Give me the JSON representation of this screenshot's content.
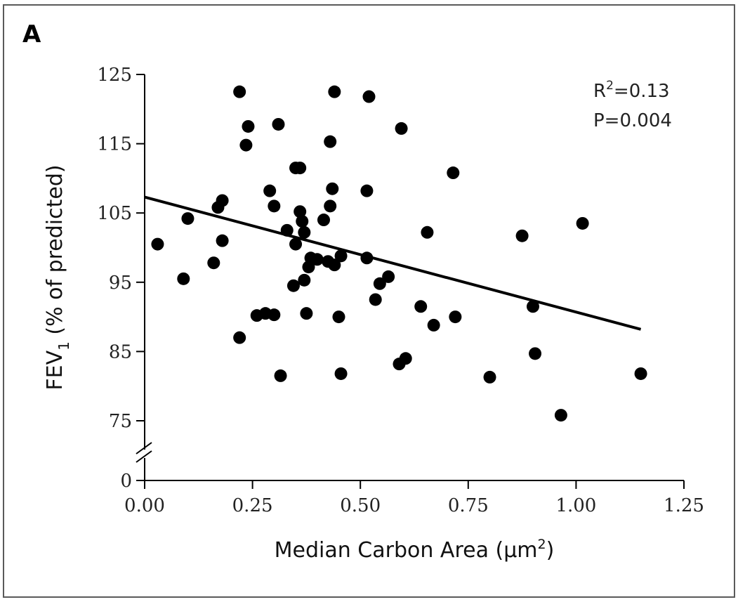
{
  "chart_data": {
    "type": "scatter",
    "panel_label": "A",
    "xlabel": "Median Carbon Area (µm",
    "xlabel_sup": "2",
    "xlabel_end": ")",
    "ylabel": "FEV",
    "ylabel_sub": "1",
    "ylabel_rest": " (% of predicted)",
    "xlim": [
      0.0,
      1.25
    ],
    "ylim_upper": [
      75,
      125
    ],
    "axis_break": true,
    "y_break_value": 0,
    "x_ticks": [
      "0.00",
      "0.25",
      "0.50",
      "0.75",
      "1.00",
      "1.25"
    ],
    "y_ticks": [
      "125",
      "115",
      "105",
      "95",
      "85",
      "75"
    ],
    "y_zero_label": "0",
    "stats": {
      "r2_prefix": "R",
      "r2_sup": "2",
      "r2_value": "=0.13",
      "p_value": "P=0.004"
    },
    "trend_line": {
      "x": [
        0.0,
        1.15
      ],
      "y": [
        107.3,
        88.2
      ]
    },
    "points": [
      {
        "x": 0.03,
        "y": 100.5
      },
      {
        "x": 0.09,
        "y": 95.5
      },
      {
        "x": 0.1,
        "y": 104.2
      },
      {
        "x": 0.16,
        "y": 97.8
      },
      {
        "x": 0.17,
        "y": 105.8
      },
      {
        "x": 0.18,
        "y": 106.8
      },
      {
        "x": 0.18,
        "y": 101.0
      },
      {
        "x": 0.22,
        "y": 122.5
      },
      {
        "x": 0.22,
        "y": 87.0
      },
      {
        "x": 0.24,
        "y": 117.5
      },
      {
        "x": 0.235,
        "y": 114.8
      },
      {
        "x": 0.26,
        "y": 90.2
      },
      {
        "x": 0.28,
        "y": 90.5
      },
      {
        "x": 0.3,
        "y": 90.3
      },
      {
        "x": 0.29,
        "y": 108.2
      },
      {
        "x": 0.3,
        "y": 106.0
      },
      {
        "x": 0.31,
        "y": 117.8
      },
      {
        "x": 0.315,
        "y": 81.5
      },
      {
        "x": 0.33,
        "y": 102.5
      },
      {
        "x": 0.345,
        "y": 94.5
      },
      {
        "x": 0.35,
        "y": 111.5
      },
      {
        "x": 0.36,
        "y": 111.5
      },
      {
        "x": 0.35,
        "y": 100.5
      },
      {
        "x": 0.36,
        "y": 105.2
      },
      {
        "x": 0.365,
        "y": 103.8
      },
      {
        "x": 0.37,
        "y": 102.2
      },
      {
        "x": 0.37,
        "y": 95.3
      },
      {
        "x": 0.375,
        "y": 90.5
      },
      {
        "x": 0.38,
        "y": 97.2
      },
      {
        "x": 0.385,
        "y": 98.5
      },
      {
        "x": 0.4,
        "y": 98.3
      },
      {
        "x": 0.415,
        "y": 104.0
      },
      {
        "x": 0.425,
        "y": 98.0
      },
      {
        "x": 0.43,
        "y": 106.0
      },
      {
        "x": 0.43,
        "y": 115.3
      },
      {
        "x": 0.44,
        "y": 122.5
      },
      {
        "x": 0.435,
        "y": 108.5
      },
      {
        "x": 0.44,
        "y": 97.5
      },
      {
        "x": 0.45,
        "y": 90.0
      },
      {
        "x": 0.455,
        "y": 98.8
      },
      {
        "x": 0.455,
        "y": 81.8
      },
      {
        "x": 0.515,
        "y": 108.2
      },
      {
        "x": 0.515,
        "y": 98.5
      },
      {
        "x": 0.52,
        "y": 121.8
      },
      {
        "x": 0.535,
        "y": 92.5
      },
      {
        "x": 0.545,
        "y": 94.8
      },
      {
        "x": 0.565,
        "y": 95.8
      },
      {
        "x": 0.59,
        "y": 83.2
      },
      {
        "x": 0.595,
        "y": 117.2
      },
      {
        "x": 0.605,
        "y": 84.0
      },
      {
        "x": 0.64,
        "y": 91.5
      },
      {
        "x": 0.655,
        "y": 102.2
      },
      {
        "x": 0.67,
        "y": 88.8
      },
      {
        "x": 0.715,
        "y": 110.8
      },
      {
        "x": 0.72,
        "y": 90.0
      },
      {
        "x": 0.8,
        "y": 81.3
      },
      {
        "x": 0.875,
        "y": 101.7
      },
      {
        "x": 0.9,
        "y": 91.5
      },
      {
        "x": 0.905,
        "y": 84.7
      },
      {
        "x": 0.965,
        "y": 75.8
      },
      {
        "x": 1.015,
        "y": 103.5
      },
      {
        "x": 1.15,
        "y": 81.8
      }
    ]
  }
}
